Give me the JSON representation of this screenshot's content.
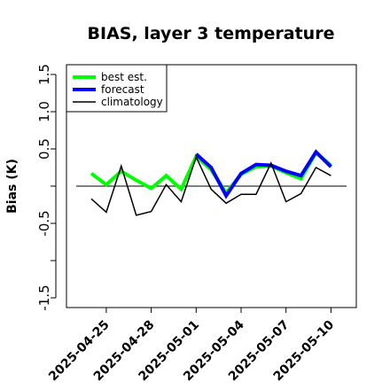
{
  "chart_data": {
    "type": "line",
    "title": "BIAS, layer 3 temperature",
    "xlabel": "",
    "ylabel": "Bias (K)",
    "ylim": [
      -1.6,
      1.6
    ],
    "y_ticks": [
      -1.5,
      -0.5,
      0.5,
      1.0,
      1.5
    ],
    "y_tick_labels": [
      "-1.5",
      "-0.5",
      "0.5",
      "1.0",
      "1.5"
    ],
    "y_minor_ticks": [
      -1.0,
      0.0
    ],
    "x": [
      "2025-04-24",
      "2025-04-25",
      "2025-04-26",
      "2025-04-27",
      "2025-04-28",
      "2025-04-29",
      "2025-04-30",
      "2025-05-01",
      "2025-05-02",
      "2025-05-03",
      "2025-05-04",
      "2025-05-05",
      "2025-05-06",
      "2025-05-07",
      "2025-05-08",
      "2025-05-09",
      "2025-05-10"
    ],
    "x_tick_labels": [
      {
        "date": "2025-04-25",
        "label": "2025-04-25",
        "color": "#000000"
      },
      {
        "date": "2025-04-28",
        "label": "2025-04-28",
        "color": "#000000"
      },
      {
        "date": "2025-05-01",
        "label": "2025-05-01",
        "color": "#228B22"
      },
      {
        "date": "2025-05-04",
        "label": "2025-05-04",
        "color": "#000000"
      },
      {
        "date": "2025-05-07",
        "label": "2025-05-07",
        "color": "#000000"
      },
      {
        "date": "2025-05-10",
        "label": "2025-05-10",
        "color": "#000000"
      }
    ],
    "reference_line": 0,
    "series": [
      {
        "name": "best est.",
        "color": "#00ff00",
        "width": 4,
        "values": [
          0.17,
          0.02,
          0.2,
          0.08,
          -0.03,
          0.14,
          -0.04,
          0.4,
          0.22,
          -0.09,
          0.16,
          0.26,
          0.27,
          0.18,
          0.1,
          0.45,
          0.28
        ]
      },
      {
        "name": "forecast",
        "color": "#0000ff",
        "width": 4,
        "values": [
          null,
          null,
          null,
          null,
          null,
          null,
          null,
          0.43,
          0.25,
          -0.13,
          0.17,
          0.29,
          0.28,
          0.2,
          0.14,
          0.46,
          0.26
        ]
      },
      {
        "name": "climatology",
        "color": "#000000",
        "width": 1.5,
        "values": [
          -0.17,
          -0.35,
          0.27,
          -0.39,
          -0.34,
          0.02,
          -0.21,
          0.39,
          -0.04,
          -0.23,
          -0.11,
          -0.11,
          0.31,
          -0.21,
          -0.1,
          0.25,
          0.14
        ]
      }
    ],
    "legend": {
      "position": "top-left",
      "entries": [
        "best est.",
        "forecast",
        "climatology"
      ]
    }
  }
}
